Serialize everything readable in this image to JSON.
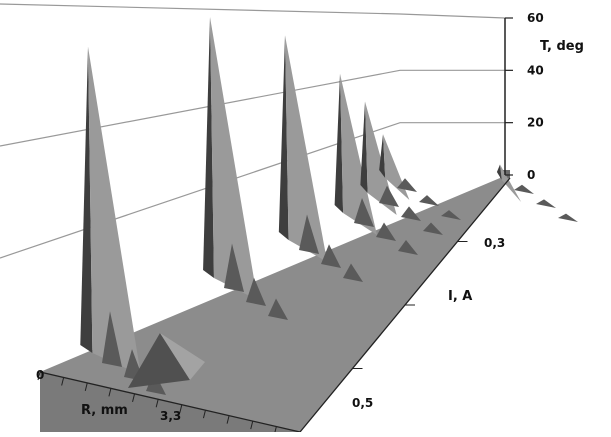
{
  "chart_data": {
    "type": "surface3d",
    "title": "",
    "z_axis": {
      "label": "T, deg",
      "ticks": [
        0,
        20,
        40,
        60
      ],
      "range": [
        0,
        60
      ]
    },
    "x_axis": {
      "label": "R, mm",
      "ticks": [
        "0",
        "3,3"
      ]
    },
    "y_axis": {
      "label": "I, A",
      "ticks": [
        "0,3",
        "0,5"
      ]
    },
    "grid": true,
    "series": [
      {
        "peak": 60
      },
      {
        "peak": 53
      },
      {
        "peak": 43
      },
      {
        "peak": 30
      },
      {
        "peak": 20
      },
      {
        "peak": 9
      },
      {
        "peak": 2
      }
    ],
    "colors": {
      "floor": "#8c8c8c",
      "peak_light": "#9a9a9a",
      "peak_dark": "#3e3e3e",
      "ripple_dark": "#5a5a5a",
      "gridline": "#999999",
      "axis": "#222222"
    }
  }
}
